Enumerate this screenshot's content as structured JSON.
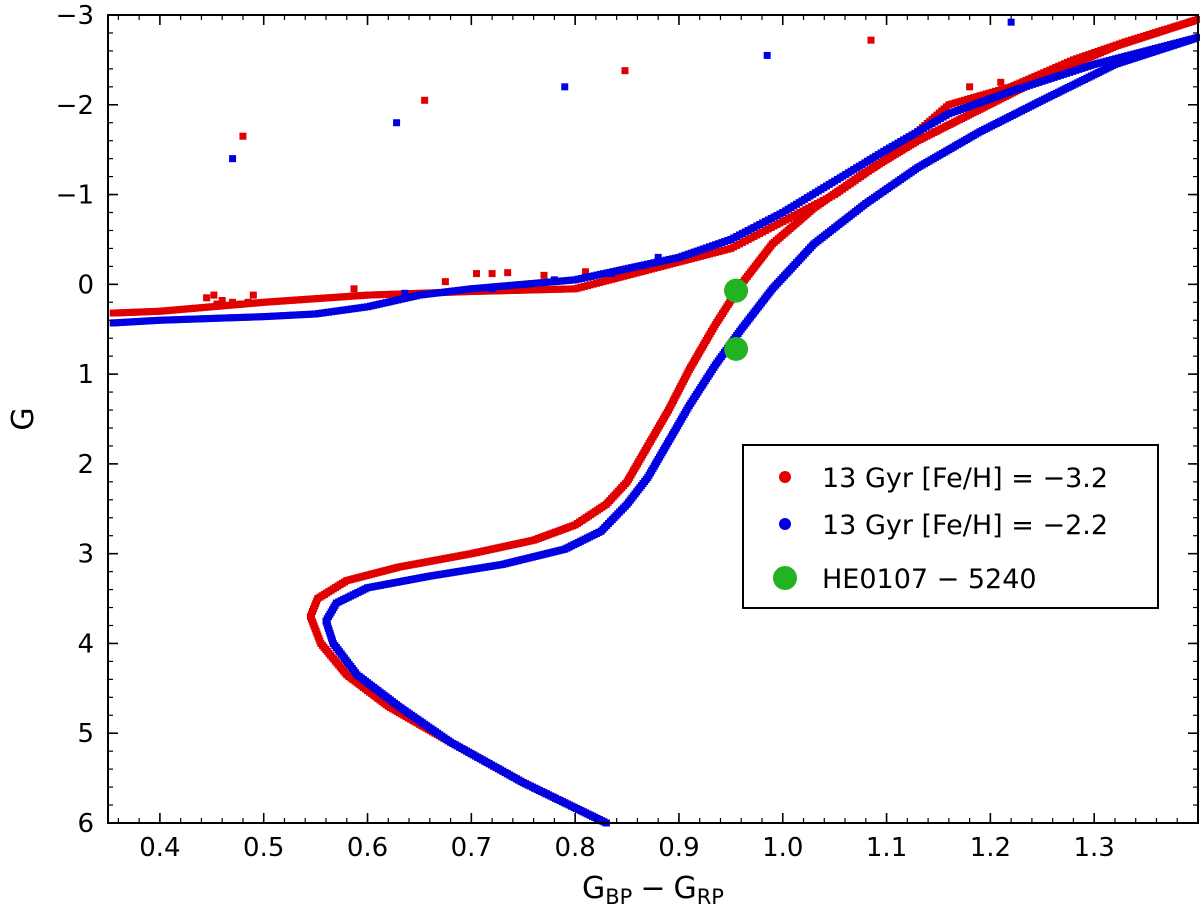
{
  "chart_data": {
    "type": "scatter",
    "xlabel": {
      "main": "G",
      "sub1": "BP",
      "minus": "−",
      "sub2": "RP"
    },
    "ylabel": "G",
    "xlim": [
      0.35,
      1.4
    ],
    "ylim": [
      6,
      -3
    ],
    "x_ticks": [
      0.4,
      0.5,
      0.6,
      0.7,
      0.8,
      0.9,
      1.0,
      1.1,
      1.2,
      1.3
    ],
    "x_tick_labels": [
      "0.4",
      "0.5",
      "0.6",
      "0.7",
      "0.8",
      "0.9",
      "1.0",
      "1.1",
      "1.2",
      "1.3"
    ],
    "y_ticks": [
      -3,
      -2,
      -1,
      0,
      1,
      2,
      3,
      4,
      5,
      6
    ],
    "y_tick_labels": [
      "−3",
      "−2",
      "−1",
      "0",
      "1",
      "2",
      "3",
      "4",
      "5",
      "6"
    ],
    "legend_position": "center-right",
    "series": [
      {
        "name": "13 Gyr [Fe/H] = −3.2",
        "color": "#e00000",
        "curve": [
          [
            0.83,
            6.0
          ],
          [
            0.75,
            5.55
          ],
          [
            0.68,
            5.1
          ],
          [
            0.62,
            4.7
          ],
          [
            0.58,
            4.35
          ],
          [
            0.555,
            4.0
          ],
          [
            0.545,
            3.7
          ],
          [
            0.552,
            3.5
          ],
          [
            0.58,
            3.3
          ],
          [
            0.63,
            3.15
          ],
          [
            0.7,
            3.0
          ],
          [
            0.76,
            2.85
          ],
          [
            0.8,
            2.68
          ],
          [
            0.83,
            2.45
          ],
          [
            0.85,
            2.2
          ],
          [
            0.87,
            1.8
          ],
          [
            0.89,
            1.4
          ],
          [
            0.91,
            0.95
          ],
          [
            0.935,
            0.45
          ],
          [
            0.96,
            0.0
          ],
          [
            0.99,
            -0.45
          ],
          [
            1.03,
            -0.85
          ],
          [
            1.08,
            -1.25
          ],
          [
            1.13,
            -1.6
          ],
          [
            1.19,
            -1.95
          ],
          [
            1.25,
            -2.3
          ],
          [
            1.32,
            -2.65
          ],
          [
            1.4,
            -2.95
          ]
        ],
        "branch": [
          [
            0.355,
            0.32
          ],
          [
            0.4,
            0.3
          ],
          [
            0.45,
            0.25
          ],
          [
            0.5,
            0.2
          ],
          [
            0.6,
            0.12
          ],
          [
            0.7,
            0.08
          ],
          [
            0.8,
            0.05
          ],
          [
            0.9,
            -0.25
          ],
          [
            0.95,
            -0.4
          ],
          [
            1.0,
            -0.7
          ],
          [
            1.05,
            -1.0
          ],
          [
            1.1,
            -1.4
          ],
          [
            1.16,
            -2.0
          ],
          [
            1.22,
            -2.2
          ],
          [
            1.28,
            -2.5
          ],
          [
            1.33,
            -2.7
          ],
          [
            1.4,
            -2.95
          ]
        ],
        "sparse": [
          [
            0.48,
            -1.65
          ],
          [
            0.655,
            -2.05
          ],
          [
            0.848,
            -2.38
          ],
          [
            1.085,
            -2.72
          ],
          [
            1.18,
            -2.2
          ],
          [
            1.21,
            -2.25
          ],
          [
            0.49,
            0.12
          ],
          [
            0.587,
            0.05
          ],
          [
            0.675,
            -0.03
          ],
          [
            0.705,
            -0.12
          ],
          [
            0.72,
            -0.12
          ],
          [
            0.735,
            -0.13
          ],
          [
            0.77,
            -0.1
          ],
          [
            0.81,
            -0.14
          ]
        ],
        "clump": [
          [
            0.445,
            0.15
          ],
          [
            0.452,
            0.12
          ],
          [
            0.46,
            0.18
          ],
          [
            0.47,
            0.2
          ],
          [
            0.478,
            0.22
          ],
          [
            0.485,
            0.2
          ],
          [
            0.455,
            0.22
          ]
        ]
      },
      {
        "name": "13 Gyr [Fe/H] = −2.2",
        "color": "#0000e0",
        "curve": [
          [
            0.83,
            6.0
          ],
          [
            0.75,
            5.55
          ],
          [
            0.68,
            5.1
          ],
          [
            0.63,
            4.7
          ],
          [
            0.59,
            4.35
          ],
          [
            0.567,
            4.0
          ],
          [
            0.56,
            3.75
          ],
          [
            0.57,
            3.55
          ],
          [
            0.6,
            3.38
          ],
          [
            0.66,
            3.25
          ],
          [
            0.73,
            3.12
          ],
          [
            0.79,
            2.95
          ],
          [
            0.825,
            2.75
          ],
          [
            0.85,
            2.45
          ],
          [
            0.87,
            2.15
          ],
          [
            0.89,
            1.75
          ],
          [
            0.91,
            1.35
          ],
          [
            0.935,
            0.9
          ],
          [
            0.96,
            0.5
          ],
          [
            0.99,
            0.05
          ],
          [
            1.03,
            -0.45
          ],
          [
            1.08,
            -0.9
          ],
          [
            1.13,
            -1.3
          ],
          [
            1.19,
            -1.7
          ],
          [
            1.25,
            -2.05
          ],
          [
            1.32,
            -2.45
          ],
          [
            1.4,
            -2.75
          ]
        ],
        "branch": [
          [
            0.355,
            0.43
          ],
          [
            0.4,
            0.4
          ],
          [
            0.45,
            0.38
          ],
          [
            0.5,
            0.36
          ],
          [
            0.55,
            0.33
          ],
          [
            0.6,
            0.25
          ],
          [
            0.65,
            0.12
          ],
          [
            0.7,
            0.05
          ],
          [
            0.8,
            -0.05
          ],
          [
            0.9,
            -0.3
          ],
          [
            0.95,
            -0.5
          ],
          [
            1.0,
            -0.8
          ],
          [
            1.05,
            -1.15
          ],
          [
            1.1,
            -1.5
          ],
          [
            1.16,
            -1.9
          ],
          [
            1.22,
            -2.15
          ],
          [
            1.3,
            -2.45
          ],
          [
            1.4,
            -2.75
          ]
        ],
        "sparse": [
          [
            0.47,
            -1.4
          ],
          [
            0.628,
            -1.8
          ],
          [
            0.79,
            -2.2
          ],
          [
            0.985,
            -2.55
          ],
          [
            1.22,
            -2.92
          ],
          [
            0.72,
            0.05
          ],
          [
            0.636,
            0.1
          ],
          [
            0.78,
            -0.05
          ],
          [
            0.835,
            -0.12
          ],
          [
            0.88,
            -0.3
          ]
        ],
        "clump": []
      }
    ],
    "highlight": {
      "name": "HE0107 − 5240",
      "color": "#22b322",
      "points": [
        [
          0.955,
          0.07
        ],
        [
          0.955,
          0.72
        ]
      ]
    }
  },
  "legend": {
    "items": [
      {
        "label": "13 Gyr [Fe/H] = −3.2",
        "color": "#e00000",
        "marker": "small"
      },
      {
        "label": "13 Gyr [Fe/H] = −2.2",
        "color": "#0000e0",
        "marker": "small"
      },
      {
        "label": "HE0107 − 5240",
        "color": "#22b322",
        "marker": "large"
      }
    ]
  }
}
